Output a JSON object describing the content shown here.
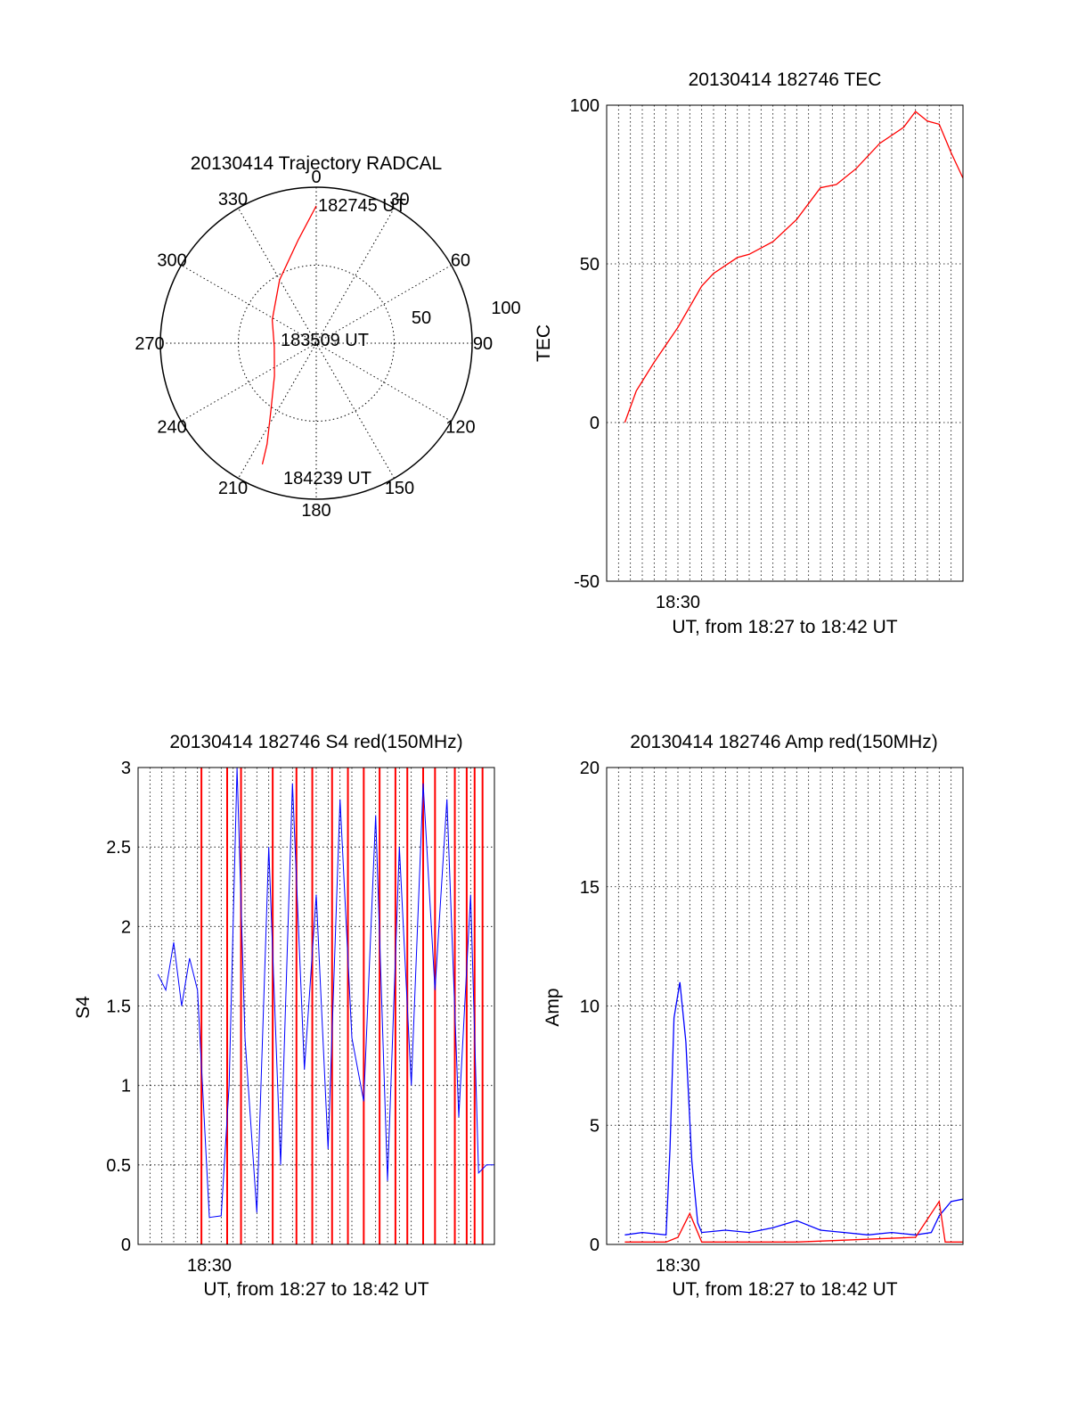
{
  "colors": {
    "red": "#ff0000",
    "blue": "#0000ff",
    "axis": "#000000",
    "grid": "#000000"
  },
  "chart_data": [
    {
      "id": "trajectory",
      "type": "polar",
      "title": "20130414 Trajectory RADCAL",
      "angle_labels": [
        "0",
        "30",
        "60",
        "90",
        "120",
        "150",
        "180",
        "210",
        "240",
        "270",
        "300",
        "330"
      ],
      "radius_labels": [
        "50",
        "100"
      ],
      "rlim": [
        0,
        100
      ],
      "grid": true,
      "track": {
        "color": "#ff0000",
        "points": [
          {
            "az": 0,
            "r": 88
          },
          {
            "az": 350,
            "r": 67
          },
          {
            "az": 330,
            "r": 47
          },
          {
            "az": 298,
            "r": 32
          },
          {
            "az": 265,
            "r": 27
          },
          {
            "az": 232,
            "r": 34
          },
          {
            "az": 214,
            "r": 52
          },
          {
            "az": 206,
            "r": 72
          },
          {
            "az": 204,
            "r": 85
          }
        ]
      },
      "annotations": [
        "182745 UT",
        "183509 UT",
        "184239 UT"
      ]
    },
    {
      "id": "tec",
      "type": "line",
      "title": "20130414 182746 TEC",
      "xlabel": "UT, from 18:27 to 18:42 UT",
      "ylabel": "TEC",
      "xlim": [
        "18:27:00",
        "18:42:00"
      ],
      "ylim": [
        -50,
        100
      ],
      "yticks": [
        "-50",
        "0",
        "50",
        "100"
      ],
      "xticks": [
        "18:30"
      ],
      "grid": true,
      "series": [
        {
          "color": "#ff0000",
          "x": [
            "18:27:46",
            "18:28:15",
            "18:29:00",
            "18:30:00",
            "18:31:00",
            "18:31:30",
            "18:32:30",
            "18:33:00",
            "18:34:00",
            "18:35:00",
            "18:36:00",
            "18:36:40",
            "18:37:30",
            "18:38:30",
            "18:39:30",
            "18:40:00",
            "18:40:30",
            "18:41:00",
            "18:41:30",
            "18:42:00"
          ],
          "y": [
            0,
            10,
            19,
            30,
            43,
            47,
            52,
            53,
            57,
            64,
            74,
            75,
            80,
            88,
            93,
            98,
            95,
            94,
            85,
            77
          ]
        }
      ]
    },
    {
      "id": "s4",
      "type": "line",
      "title": "20130414 182746 S4 red(150MHz)",
      "xlabel": "UT, from 18:27 to 18:42 UT",
      "ylabel": "S4",
      "xlim": [
        "18:27:00",
        "18:42:00"
      ],
      "ylim": [
        0,
        3
      ],
      "yticks": [
        "0",
        "0.5",
        "1",
        "1.5",
        "2",
        "2.5",
        "3"
      ],
      "xticks": [
        "18:30"
      ],
      "grid": true,
      "series": [
        {
          "color": "#0000ff",
          "x": [
            "18:27:50",
            "18:28:10",
            "18:28:30",
            "18:28:50",
            "18:29:10",
            "18:29:30",
            "18:30:00",
            "18:30:30",
            "18:30:50",
            "18:31:10",
            "18:31:30",
            "18:32:00",
            "18:32:30",
            "18:33:00",
            "18:33:30",
            "18:34:00",
            "18:34:30",
            "18:35:00",
            "18:35:30",
            "18:36:00",
            "18:36:30",
            "18:37:00",
            "18:37:30",
            "18:38:00",
            "18:38:30",
            "18:39:00",
            "18:39:30",
            "18:40:00",
            "18:40:30",
            "18:41:00",
            "18:41:20",
            "18:41:40",
            "18:42:00"
          ],
          "y": [
            1.7,
            1.6,
            1.9,
            1.5,
            1.8,
            1.6,
            0.17,
            0.18,
            1.0,
            3.0,
            1.3,
            0.2,
            2.5,
            0.5,
            2.9,
            1.1,
            2.2,
            0.6,
            2.8,
            1.3,
            0.9,
            2.7,
            0.4,
            2.5,
            1.0,
            2.9,
            1.6,
            2.8,
            0.8,
            2.2,
            0.45,
            0.5,
            0.5
          ]
        },
        {
          "color": "#ff0000",
          "x": [
            "18:29:40",
            "18:30:45",
            "18:31:20",
            "18:32:40",
            "18:33:40",
            "18:34:20",
            "18:35:10",
            "18:35:50",
            "18:36:30",
            "18:37:10",
            "18:37:50",
            "18:38:20",
            "18:39:00",
            "18:39:30",
            "18:40:20",
            "18:40:50",
            "18:41:10",
            "18:41:30"
          ],
          "y": [
            3,
            3,
            3,
            3,
            3,
            3,
            3,
            3,
            3,
            3,
            3,
            3,
            3,
            3,
            3,
            3,
            3,
            3
          ]
        }
      ]
    },
    {
      "id": "amp",
      "type": "line",
      "title": "20130414 182746 Amp red(150MHz)",
      "xlabel": "UT, from 18:27 to 18:42 UT",
      "ylabel": "Amp",
      "xlim": [
        "18:27:00",
        "18:42:00"
      ],
      "ylim": [
        0,
        20
      ],
      "yticks": [
        "0",
        "5",
        "10",
        "15",
        "20"
      ],
      "xticks": [
        "18:30"
      ],
      "grid": true,
      "series": [
        {
          "color": "#0000ff",
          "x": [
            "18:27:46",
            "18:28:30",
            "18:29:30",
            "18:29:40",
            "18:29:50",
            "18:30:05",
            "18:30:20",
            "18:30:35",
            "18:30:50",
            "18:31:00",
            "18:32:00",
            "18:33:00",
            "18:34:00",
            "18:35:00",
            "18:36:00",
            "18:37:00",
            "18:38:00",
            "18:39:00",
            "18:40:00",
            "18:40:40",
            "18:41:00",
            "18:41:30",
            "18:42:00"
          ],
          "y": [
            0.4,
            0.5,
            0.4,
            4.0,
            9.5,
            11.0,
            8.5,
            3.5,
            0.9,
            0.5,
            0.6,
            0.5,
            0.7,
            1.0,
            0.6,
            0.5,
            0.4,
            0.5,
            0.4,
            0.5,
            1.2,
            1.8,
            1.9
          ]
        },
        {
          "color": "#ff0000",
          "x": [
            "18:27:46",
            "18:29:30",
            "18:30:00",
            "18:30:30",
            "18:31:00",
            "18:35:00",
            "18:40:00",
            "18:41:00",
            "18:41:15",
            "18:42:00"
          ],
          "y": [
            0.1,
            0.1,
            0.3,
            1.3,
            0.1,
            0.1,
            0.3,
            1.8,
            0.1,
            0.1
          ]
        }
      ]
    }
  ]
}
